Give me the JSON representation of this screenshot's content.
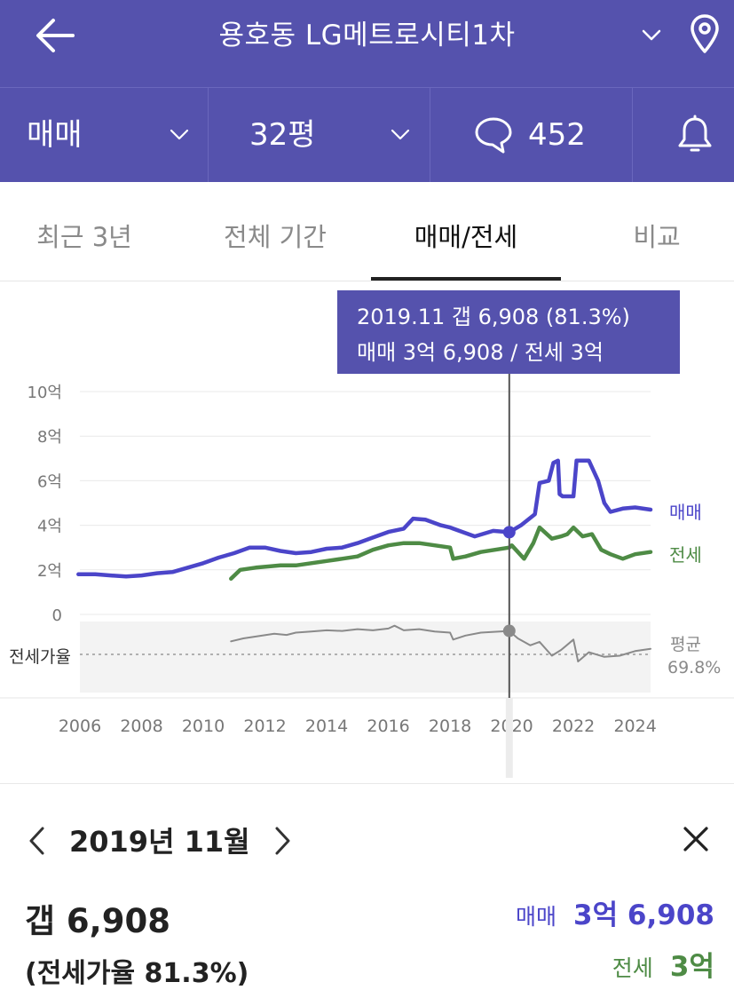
{
  "header": {
    "title": "용호동 LG메트로시티1차"
  },
  "filters": {
    "trade_type": "매매",
    "size": "32평",
    "comment_count": "452"
  },
  "tabs": [
    {
      "label": "최근 3년",
      "active": false
    },
    {
      "label": "전체 기간",
      "active": false
    },
    {
      "label": "매매/전세",
      "active": true
    },
    {
      "label": "비교",
      "active": false
    }
  ],
  "tooltip": {
    "line1": "2019.11  갭 6,908 (81.3%)",
    "line2": "매매 3억 6,908 / 전세 3억"
  },
  "detail": {
    "month": "2019년 11월",
    "gap": "갭 6,908",
    "ratio": "(전세가율 81.3%)",
    "sale_label": "매매",
    "sale_value": "3억 6,908",
    "jeonse_label": "전세",
    "jeonse_value": "3억"
  },
  "colors": {
    "header_bg": "#5552ad",
    "sale": "#4b45c9",
    "jeonse": "#4e8b45",
    "ratio": "#8a8a8a"
  },
  "chart_data": {
    "type": "line",
    "x_unit": "year",
    "xlim": [
      2006,
      2024.5
    ],
    "x_ticks": [
      "2006",
      "2008",
      "2010",
      "2012",
      "2014",
      "2016",
      "2018",
      "2020",
      "2022",
      "2024"
    ],
    "y_ticks": [
      "10억",
      "8억",
      "6억",
      "4억",
      "2억",
      "0"
    ],
    "ylim": [
      0,
      10
    ],
    "y_unit": "억",
    "series": [
      {
        "name": "매매",
        "points": [
          [
            2005.95,
            1.8
          ],
          [
            2006.5,
            1.8
          ],
          [
            2007,
            1.75
          ],
          [
            2007.5,
            1.7
          ],
          [
            2008,
            1.75
          ],
          [
            2008.5,
            1.85
          ],
          [
            2009,
            1.9
          ],
          [
            2009.5,
            2.1
          ],
          [
            2010,
            2.3
          ],
          [
            2010.5,
            2.55
          ],
          [
            2011,
            2.75
          ],
          [
            2011.5,
            3.0
          ],
          [
            2012,
            3.0
          ],
          [
            2012.5,
            2.85
          ],
          [
            2013,
            2.75
          ],
          [
            2013.5,
            2.8
          ],
          [
            2014,
            2.95
          ],
          [
            2014.5,
            3.0
          ],
          [
            2015,
            3.2
          ],
          [
            2015.5,
            3.45
          ],
          [
            2016,
            3.7
          ],
          [
            2016.5,
            3.85
          ],
          [
            2016.8,
            4.3
          ],
          [
            2017.2,
            4.25
          ],
          [
            2017.7,
            4.0
          ],
          [
            2018,
            3.9
          ],
          [
            2018.4,
            3.7
          ],
          [
            2018.8,
            3.5
          ],
          [
            2019.4,
            3.75
          ],
          [
            2019.92,
            3.69
          ],
          [
            2020.3,
            4.0
          ],
          [
            2020.75,
            4.5
          ],
          [
            2020.9,
            5.9
          ],
          [
            2021.2,
            6.0
          ],
          [
            2021.35,
            6.8
          ],
          [
            2021.5,
            6.9
          ],
          [
            2021.55,
            5.4
          ],
          [
            2021.65,
            5.3
          ],
          [
            2022,
            5.3
          ],
          [
            2022.1,
            6.9
          ],
          [
            2022.5,
            6.9
          ],
          [
            2022.8,
            6.0
          ],
          [
            2023,
            5.0
          ],
          [
            2023.2,
            4.6
          ],
          [
            2023.6,
            4.75
          ],
          [
            2024,
            4.8
          ],
          [
            2024.5,
            4.7
          ]
        ]
      },
      {
        "name": "전세",
        "points": [
          [
            2010.9,
            1.6
          ],
          [
            2011.2,
            2.0
          ],
          [
            2011.7,
            2.1
          ],
          [
            2012.5,
            2.2
          ],
          [
            2013,
            2.2
          ],
          [
            2013.5,
            2.3
          ],
          [
            2014,
            2.4
          ],
          [
            2014.5,
            2.5
          ],
          [
            2015,
            2.6
          ],
          [
            2015.5,
            2.9
          ],
          [
            2016,
            3.1
          ],
          [
            2016.5,
            3.2
          ],
          [
            2017,
            3.2
          ],
          [
            2017.5,
            3.1
          ],
          [
            2018,
            3.0
          ],
          [
            2018.1,
            2.5
          ],
          [
            2018.5,
            2.6
          ],
          [
            2019,
            2.8
          ],
          [
            2019.92,
            3.0
          ],
          [
            2020,
            3.1
          ],
          [
            2020.4,
            2.5
          ],
          [
            2020.7,
            3.2
          ],
          [
            2020.9,
            3.9
          ],
          [
            2021.3,
            3.4
          ],
          [
            2021.6,
            3.5
          ],
          [
            2021.8,
            3.6
          ],
          [
            2022,
            3.9
          ],
          [
            2022.3,
            3.5
          ],
          [
            2022.6,
            3.6
          ],
          [
            2022.9,
            2.9
          ],
          [
            2023.2,
            2.7
          ],
          [
            2023.6,
            2.5
          ],
          [
            2024,
            2.7
          ],
          [
            2024.5,
            2.8
          ]
        ]
      },
      {
        "name": "전세가율",
        "normalized": true,
        "points": [
          [
            2010.9,
            0.75
          ],
          [
            2011.3,
            0.8
          ],
          [
            2011.8,
            0.84
          ],
          [
            2012.3,
            0.88
          ],
          [
            2012.7,
            0.86
          ],
          [
            2013,
            0.9
          ],
          [
            2013.5,
            0.92
          ],
          [
            2014,
            0.94
          ],
          [
            2014.5,
            0.93
          ],
          [
            2015,
            0.96
          ],
          [
            2015.5,
            0.94
          ],
          [
            2016,
            0.97
          ],
          [
            2016.2,
            1.02
          ],
          [
            2016.5,
            0.94
          ],
          [
            2017,
            0.96
          ],
          [
            2017.5,
            0.92
          ],
          [
            2018,
            0.9
          ],
          [
            2018.1,
            0.78
          ],
          [
            2018.5,
            0.85
          ],
          [
            2019,
            0.9
          ],
          [
            2019.92,
            0.93
          ],
          [
            2020.2,
            0.8
          ],
          [
            2020.6,
            0.68
          ],
          [
            2020.9,
            0.74
          ],
          [
            2021.3,
            0.5
          ],
          [
            2021.6,
            0.6
          ],
          [
            2022,
            0.78
          ],
          [
            2022.15,
            0.4
          ],
          [
            2022.5,
            0.56
          ],
          [
            2023,
            0.48
          ],
          [
            2023.5,
            0.5
          ],
          [
            2024,
            0.58
          ],
          [
            2024.5,
            0.62
          ]
        ]
      }
    ],
    "ratio_avg_label": "평균",
    "ratio_avg_value": "69.8%",
    "ratio_axis_label": "전세가율",
    "selected_x": 2019.92
  }
}
